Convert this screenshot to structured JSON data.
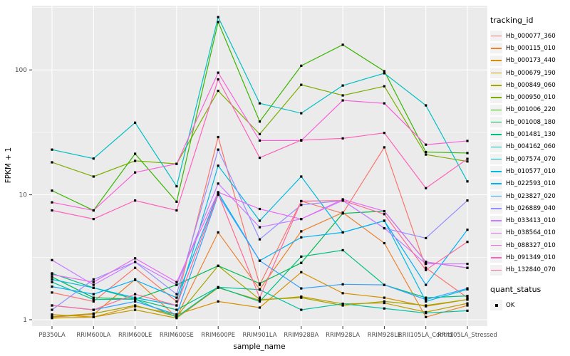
{
  "chart_data": {
    "type": "line",
    "title": "",
    "xlabel": "sample_name",
    "ylabel": "FPKM + 1",
    "y_scale": "log10",
    "y_ticks": [
      1,
      10,
      100
    ],
    "y_minor_ticks": [
      3.1623,
      31.623,
      316.23
    ],
    "ylim": [
      0.92,
      335
    ],
    "grid": "on",
    "panel_bg": "#EBEBEB",
    "grid_color": "#FFFFFF",
    "axis_text_color": "#4D4D4D",
    "tick_mark_color": "#333333",
    "point_color": "#000000",
    "legend_position": "right",
    "legend_title": "tracking_id",
    "legend2_title": "quant_status",
    "legend2_items": [
      "OK"
    ],
    "categories": [
      "PB350LA",
      "RRIM600LA",
      "RRIM600LE",
      "RRIM600SE",
      "RRIM600PE",
      "RRIM901LA",
      "RRIM928BA",
      "RRIM928LA",
      "RRIM928LE",
      "RRII105LA_Control",
      "RRII105LA_Stressed"
    ],
    "series": [
      {
        "name": "Hb_000077_360",
        "color": "#F8766D",
        "values": [
          1.65,
          1.4,
          2.6,
          1.4,
          29,
          1.9,
          8.9,
          7.1,
          24,
          2.6,
          1.5
        ]
      },
      {
        "name": "Hb_000115_010",
        "color": "#EA8331",
        "values": [
          1.05,
          1.1,
          2.1,
          1.05,
          5.0,
          1.75,
          5.1,
          7.2,
          4.1,
          1.05,
          1.3
        ]
      },
      {
        "name": "Hb_000173_440",
        "color": "#D89000",
        "values": [
          1.1,
          1.05,
          1.28,
          1.1,
          1.4,
          1.25,
          2.4,
          1.63,
          1.5,
          1.28,
          1.45
        ]
      },
      {
        "name": "Hb_000679_190",
        "color": "#C09B00",
        "values": [
          1.03,
          1.05,
          1.2,
          1.03,
          1.8,
          1.43,
          1.53,
          1.34,
          1.36,
          1.15,
          1.35
        ]
      },
      {
        "name": "Hb_000849_060",
        "color": "#A3A500",
        "values": [
          1.06,
          1.12,
          1.3,
          1.06,
          2.7,
          1.45,
          1.5,
          1.3,
          1.4,
          1.3,
          1.45
        ]
      },
      {
        "name": "Hb_000950_010",
        "color": "#7CAE00",
        "values": [
          18.2,
          14,
          18.7,
          17.7,
          68,
          30.6,
          76,
          62.5,
          74,
          21,
          18.5
        ]
      },
      {
        "name": "Hb_001006_220",
        "color": "#39B600",
        "values": [
          10.8,
          7.5,
          21.3,
          8.8,
          242,
          38.6,
          108,
          159,
          97.7,
          22,
          21.6
        ]
      },
      {
        "name": "Hb_001008_180",
        "color": "#00BB4E",
        "values": [
          2.2,
          1.5,
          1.46,
          1.9,
          2.7,
          1.95,
          2.85,
          7.1,
          7.4,
          2.9,
          2.6
        ]
      },
      {
        "name": "Hb_001481_130",
        "color": "#00BF7D",
        "values": [
          2.35,
          1.8,
          1.46,
          1.2,
          1.82,
          1.4,
          3.2,
          3.6,
          1.9,
          1.5,
          1.55
        ]
      },
      {
        "name": "Hb_004162_060",
        "color": "#00C1A3",
        "values": [
          2.0,
          1.45,
          1.46,
          1.05,
          1.82,
          1.74,
          1.2,
          1.34,
          1.23,
          1.13,
          1.18
        ]
      },
      {
        "name": "Hb_007574_070",
        "color": "#00BFC4",
        "values": [
          23,
          19.5,
          37.8,
          11.7,
          265,
          54,
          45,
          75,
          94,
          52,
          12.8
        ]
      },
      {
        "name": "Hb_010577_010",
        "color": "#00BAE0",
        "values": [
          2.1,
          1.8,
          1.5,
          1.3,
          17.1,
          6.2,
          14,
          5.0,
          6.2,
          1.4,
          1.75
        ]
      },
      {
        "name": "Hb_022593_010",
        "color": "#00B0F6",
        "values": [
          1.84,
          1.6,
          2.08,
          1.5,
          10.4,
          2.97,
          4.56,
          5.0,
          6.2,
          1.9,
          5.25
        ]
      },
      {
        "name": "Hb_023827_020",
        "color": "#35A2FF",
        "values": [
          1.3,
          1.2,
          1.4,
          1.1,
          10.0,
          2.97,
          1.78,
          1.92,
          1.9,
          1.45,
          1.78
        ]
      },
      {
        "name": "Hb_026889_040",
        "color": "#9590FF",
        "values": [
          1.2,
          2.1,
          2.9,
          1.6,
          23,
          4.4,
          8.3,
          9.0,
          5.4,
          4.5,
          9.0
        ]
      },
      {
        "name": "Hb_033413_010",
        "color": "#C77CFF",
        "values": [
          3.0,
          1.9,
          2.9,
          1.9,
          12.3,
          5.5,
          6.4,
          9.0,
          5.4,
          2.8,
          2.8
        ]
      },
      {
        "name": "Hb_038564_010",
        "color": "#E76BF3",
        "values": [
          2.3,
          2.0,
          3.1,
          2.0,
          10.5,
          7.7,
          6.4,
          9.2,
          7.4,
          2.9,
          2.6
        ]
      },
      {
        "name": "Hb_088327_010",
        "color": "#FA62DB",
        "values": [
          8.7,
          7.5,
          15.1,
          17.7,
          95,
          27.2,
          27.2,
          57,
          54,
          25.2,
          27
        ]
      },
      {
        "name": "Hb_091349_010",
        "color": "#FF62BC",
        "values": [
          7.5,
          6.4,
          9.0,
          7.5,
          84,
          19.8,
          27.4,
          28.3,
          31.3,
          11.3,
          19.4
        ]
      },
      {
        "name": "Hb_132840_070",
        "color": "#FF6A98",
        "values": [
          1.3,
          1.2,
          1.6,
          1.3,
          10.2,
          1.5,
          8.9,
          9.0,
          7.0,
          2.5,
          4.2
        ]
      }
    ]
  }
}
